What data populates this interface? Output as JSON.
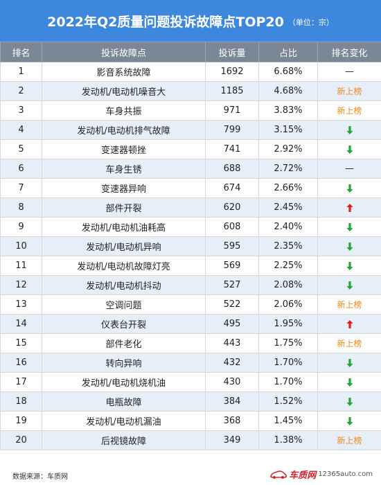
{
  "header": {
    "title": "2022年Q2质量问题投诉故障点TOP20",
    "unit": "（单位：宗）"
  },
  "colors": {
    "header_bg": "#3d87dc",
    "table_header_bg": "#7b8796",
    "row_alt_bg": "#e6eef8",
    "new_entry": "#f08a1c",
    "arrow_up": "#e02020",
    "arrow_down": "#21a536"
  },
  "chart_data": {
    "type": "table",
    "columns": [
      "排名",
      "投诉故障点",
      "投诉量",
      "占比",
      "排名变化"
    ],
    "rows": [
      {
        "rank": "1",
        "item": "影音系统故障",
        "count": "1692",
        "share": "6.68%",
        "change": "—",
        "change_type": "same"
      },
      {
        "rank": "2",
        "item": "发动机/电动机噪音大",
        "count": "1185",
        "share": "4.68%",
        "change": "新上榜",
        "change_type": "new"
      },
      {
        "rank": "3",
        "item": "车身共振",
        "count": "971",
        "share": "3.83%",
        "change": "新上榜",
        "change_type": "new"
      },
      {
        "rank": "4",
        "item": "发动机/电动机排气故障",
        "count": "799",
        "share": "3.15%",
        "change": "",
        "change_type": "down"
      },
      {
        "rank": "5",
        "item": "变速器顿挫",
        "count": "741",
        "share": "2.92%",
        "change": "",
        "change_type": "down"
      },
      {
        "rank": "6",
        "item": "车身生锈",
        "count": "688",
        "share": "2.72%",
        "change": "—",
        "change_type": "same"
      },
      {
        "rank": "7",
        "item": "变速器异响",
        "count": "674",
        "share": "2.66%",
        "change": "",
        "change_type": "down"
      },
      {
        "rank": "8",
        "item": "部件开裂",
        "count": "620",
        "share": "2.45%",
        "change": "",
        "change_type": "up"
      },
      {
        "rank": "9",
        "item": "发动机/电动机油耗高",
        "count": "608",
        "share": "2.40%",
        "change": "",
        "change_type": "down"
      },
      {
        "rank": "10",
        "item": "发动机/电动机异响",
        "count": "595",
        "share": "2.35%",
        "change": "",
        "change_type": "down"
      },
      {
        "rank": "11",
        "item": "发动机/电动机故障灯亮",
        "count": "569",
        "share": "2.25%",
        "change": "",
        "change_type": "down"
      },
      {
        "rank": "12",
        "item": "发动机/电动机抖动",
        "count": "527",
        "share": "2.08%",
        "change": "",
        "change_type": "down"
      },
      {
        "rank": "13",
        "item": "空调问题",
        "count": "522",
        "share": "2.06%",
        "change": "新上榜",
        "change_type": "new"
      },
      {
        "rank": "14",
        "item": "仪表台开裂",
        "count": "495",
        "share": "1.95%",
        "change": "",
        "change_type": "up"
      },
      {
        "rank": "15",
        "item": "部件老化",
        "count": "443",
        "share": "1.75%",
        "change": "新上榜",
        "change_type": "new"
      },
      {
        "rank": "16",
        "item": "转向异响",
        "count": "432",
        "share": "1.70%",
        "change": "",
        "change_type": "down"
      },
      {
        "rank": "17",
        "item": "发动机/电动机烧机油",
        "count": "430",
        "share": "1.70%",
        "change": "",
        "change_type": "down"
      },
      {
        "rank": "18",
        "item": "电瓶故障",
        "count": "384",
        "share": "1.52%",
        "change": "",
        "change_type": "down"
      },
      {
        "rank": "19",
        "item": "发动机/电动机漏油",
        "count": "368",
        "share": "1.45%",
        "change": "",
        "change_type": "down"
      },
      {
        "rank": "20",
        "item": "后视镜故障",
        "count": "349",
        "share": "1.38%",
        "change": "新上榜",
        "change_type": "new"
      }
    ]
  },
  "footer": {
    "source": "数据来源：车质网",
    "brand": "车质网",
    "site": "12365auto.com",
    "logo_icon": "car-logo-icon"
  }
}
